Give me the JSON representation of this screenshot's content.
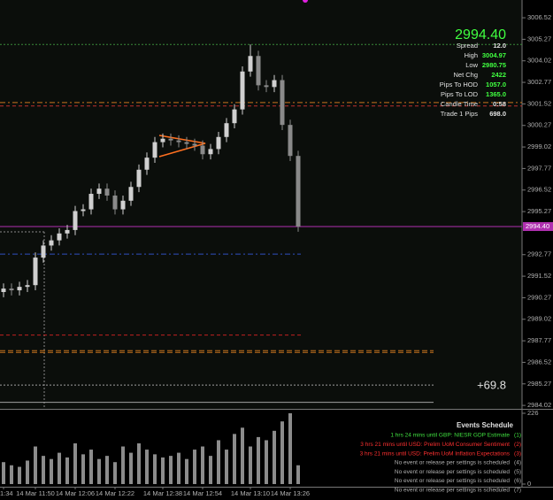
{
  "chart_data": {
    "type": "candlestick",
    "x": [
      "1:34",
      null,
      null,
      null,
      "14 Mar 11:50",
      null,
      null,
      null,
      null,
      "14 Mar 12:06",
      null,
      null,
      null,
      null,
      "14 Mar 12:22",
      null,
      null,
      null,
      null,
      null,
      "14 Mar 12:38",
      null,
      null,
      null,
      null,
      "14 Mar 12:54",
      null,
      null,
      null,
      null,
      null,
      "14 Mar 13:10",
      null,
      null,
      null,
      null,
      "14 Mar 13:26",
      null
    ],
    "open": [
      2990.6,
      2990.8,
      2990.7,
      2990.9,
      2991.0,
      2992.6,
      2993.3,
      2993.6,
      2994.0,
      2994.2,
      2995.3,
      2995.4,
      2996.3,
      2996.6,
      2996.2,
      2995.4,
      2995.9,
      2996.7,
      2997.7,
      2998.4,
      2999.3,
      2999.5,
      2999.4,
      2999.3,
      2999.2,
      2999.1,
      2998.6,
      2998.9,
      2999.6,
      3000.4,
      3001.2,
      3003.4,
      3004.3,
      3002.6,
      3002.5,
      3002.9,
      3000.3,
      2998.5
    ],
    "high": [
      2991.1,
      2991.1,
      2991.2,
      2991.3,
      2992.9,
      2993.6,
      2993.9,
      2994.3,
      2994.5,
      2995.6,
      2995.7,
      2996.6,
      2996.9,
      2996.9,
      2996.5,
      2996.2,
      2997.0,
      2998.0,
      2998.7,
      2999.6,
      2999.8,
      2999.8,
      2999.7,
      2999.6,
      2999.5,
      2999.4,
      2999.2,
      2999.9,
      3000.7,
      3001.5,
      3003.7,
      3004.97,
      3004.6,
      3002.9,
      3003.2,
      3003.2,
      3000.6,
      2998.8
    ],
    "low": [
      2990.3,
      2990.4,
      2990.4,
      2990.6,
      2990.7,
      2992.3,
      2993.0,
      2993.3,
      2993.7,
      2993.9,
      2995.0,
      2995.1,
      2996.0,
      2995.9,
      2995.1,
      2995.1,
      2995.6,
      2996.4,
      2997.4,
      2998.1,
      2999.0,
      2999.1,
      2999.0,
      2998.9,
      2998.8,
      2998.3,
      2998.3,
      2998.6,
      2999.3,
      3000.1,
      3000.9,
      3003.1,
      3002.3,
      3002.2,
      3002.2,
      3000.0,
      2998.2,
      2994.1
    ],
    "close": [
      2990.8,
      2990.7,
      2990.9,
      2991.0,
      2992.6,
      2993.3,
      2993.6,
      2994.0,
      2994.2,
      2995.3,
      2995.4,
      2996.3,
      2996.6,
      2996.2,
      2995.4,
      2995.9,
      2996.7,
      2997.7,
      2998.4,
      2999.3,
      2999.5,
      2999.4,
      2999.3,
      2999.2,
      2999.1,
      2998.6,
      2998.9,
      2999.6,
      3000.4,
      3001.2,
      3003.4,
      3004.3,
      3002.6,
      3002.5,
      3002.9,
      3000.3,
      2998.5,
      2994.4
    ],
    "up_color": "#d0d0d0",
    "down_color": "#8a8a8a",
    "ylim": [
      2983.82,
      3007.55
    ],
    "yticks": [
      3006.52,
      3005.27,
      3004.02,
      3002.77,
      3001.52,
      3000.27,
      2999.02,
      2997.77,
      2996.52,
      2995.27,
      2992.77,
      2991.52,
      2990.27,
      2989.02,
      2987.77,
      2986.52,
      2985.27,
      2984.02
    ],
    "levels": [
      {
        "value": 3004.97,
        "color": "#3a8a3a",
        "dash": "2 2"
      },
      {
        "value": 3001.6,
        "color": "#c8741e",
        "dash": "6 3 2 3"
      },
      {
        "value": 3001.4,
        "color": "#c03030",
        "dash": "4 3"
      },
      {
        "value": 2994.4,
        "color": "#b030b0",
        "dash": "none"
      },
      {
        "value": 2992.8,
        "color": "#3050c0",
        "dash": "6 3 2 3"
      },
      {
        "value": 2988.1,
        "color": "#c02020",
        "dash": "4 3"
      },
      {
        "value": 2987.2,
        "color": "#c8741e",
        "dash": "6 3"
      },
      {
        "value": 2985.2,
        "color": "#a0a0a0",
        "dash": "2 2"
      },
      {
        "value": 2984.2,
        "color": "#a0a0a0",
        "dash": "none"
      }
    ],
    "current_price": {
      "value": 2994.4,
      "label": "2994.40"
    },
    "volume": {
      "values": [
        70,
        60,
        55,
        75,
        120,
        90,
        80,
        100,
        85,
        130,
        95,
        110,
        80,
        90,
        70,
        120,
        100,
        130,
        110,
        95,
        85,
        90,
        100,
        80,
        110,
        120,
        90,
        140,
        110,
        160,
        180,
        120,
        150,
        140,
        170,
        200,
        226,
        60
      ],
      "color": "#8c8c8c",
      "vlim": [
        0,
        226
      ],
      "vticks": [
        0,
        226
      ]
    }
  },
  "info_panel": {
    "price": "2994.40",
    "rows": [
      [
        "Spread",
        "12.0"
      ],
      [
        "High",
        "3004.97"
      ],
      [
        "Low",
        "2980.75"
      ],
      [
        "Net Chg",
        "2422"
      ],
      [
        "Pips To HOD",
        "1057.0"
      ],
      [
        "Pips To LOD",
        "1365.0"
      ],
      [
        "Candle Time",
        "0:58"
      ],
      [
        "Trade 1 Pips",
        "698.0"
      ]
    ],
    "pips": "+69.8"
  },
  "events": {
    "title": "Events Schedule",
    "rows": [
      [
        "1 hrs 24 mins until GBP: NIESR GDP Estimate",
        "(1)"
      ],
      [
        "3 hrs 21 mins until USD: Prelim UoM Consumer Sentiment",
        "(2)"
      ],
      [
        "3 hrs 21 mins until USD: Prelim UoM Inflation Expectations",
        "(3)"
      ],
      [
        "No event or release per settings is scheduled",
        "(4)"
      ],
      [
        "No event or release per settings is scheduled",
        "(5)"
      ],
      [
        "No event or release per settings is scheduled",
        "(6)"
      ],
      [
        "No event or release per settings is scheduled",
        "(7)"
      ]
    ]
  }
}
